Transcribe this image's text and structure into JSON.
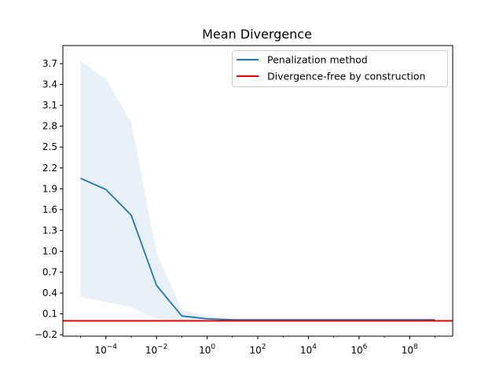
{
  "chart_data": {
    "type": "line",
    "title": "Mean Divergence",
    "xlabel": "",
    "ylabel": "",
    "xscale": "log",
    "xlim": [
      2e-06,
      5000000000.0
    ],
    "ylim": [
      -0.22,
      3.96
    ],
    "grid": false,
    "legend_position": "top-right",
    "x_ticks": [
      {
        "base": "10",
        "exp": "−4",
        "value": 0.0001
      },
      {
        "base": "10",
        "exp": "−2",
        "value": 0.01
      },
      {
        "base": "10",
        "exp": "0",
        "value": 1
      },
      {
        "base": "10",
        "exp": "2",
        "value": 100
      },
      {
        "base": "10",
        "exp": "4",
        "value": 10000
      },
      {
        "base": "10",
        "exp": "6",
        "value": 1000000
      },
      {
        "base": "10",
        "exp": "8",
        "value": 100000000
      }
    ],
    "y_ticks": [
      "−0.2",
      "0.1",
      "0.4",
      "0.7",
      "1.0",
      "1.3",
      "1.6",
      "1.9",
      "2.2",
      "2.5",
      "2.8",
      "3.1",
      "3.4",
      "3.7"
    ],
    "y_tick_values": [
      -0.2,
      0.1,
      0.4,
      0.7,
      1.0,
      1.3,
      1.6,
      1.9,
      2.2,
      2.5,
      2.8,
      3.1,
      3.4,
      3.7
    ],
    "x": [
      1e-05,
      0.0001,
      0.001,
      0.01,
      0.1,
      1,
      10,
      100,
      1000,
      10000,
      100000,
      1000000,
      10000000,
      100000000,
      1000000000
    ],
    "series": [
      {
        "name": "Penalization method",
        "color": "#1f77b4",
        "values": [
          2.05,
          1.89,
          1.52,
          0.51,
          0.07,
          0.03,
          0.015,
          0.015,
          0.015,
          0.015,
          0.015,
          0.015,
          0.015,
          0.015,
          0.015
        ],
        "band_lower": [
          0.35,
          0.27,
          0.2,
          0.03,
          0.005,
          0.005,
          0.005,
          0.005,
          0.005,
          0.005,
          0.005,
          0.005,
          0.005,
          0.005,
          0.005
        ],
        "band_upper": [
          3.74,
          3.48,
          2.85,
          0.98,
          0.16,
          0.07,
          0.03,
          0.025,
          0.025,
          0.025,
          0.025,
          0.025,
          0.025,
          0.025,
          0.025
        ],
        "band_color": "#1f77b4"
      },
      {
        "name": "Divergence-free by construction",
        "color": "#e00000",
        "type": "hline",
        "value": 0.0
      }
    ]
  }
}
